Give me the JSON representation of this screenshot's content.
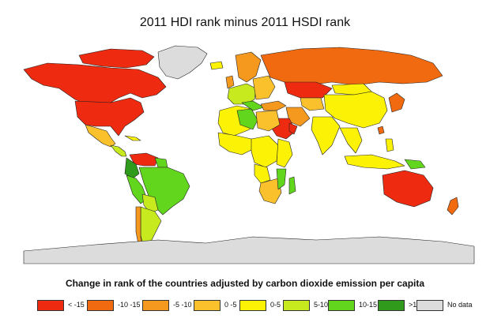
{
  "title": "2011 HDI rank minus 2011 HSDI rank",
  "subtitle": "Change in rank of the countries adjusted by carbon dioxide emission per capita",
  "colors": {
    "lt_-15": "#ee2a10",
    "-10_-15": "#f26a10",
    "-5_-10": "#f5981e",
    "0_-5": "#fbc12c",
    "0_5": "#fbf205",
    "5_10": "#c6ea1e",
    "10_15": "#62d61c",
    "gt_15": "#2f9a1c",
    "no_data": "#dcdcdc"
  },
  "legend": [
    {
      "label": "< -15",
      "color": "#ee2a10"
    },
    {
      "label": "-10  -15",
      "color": "#f26a10"
    },
    {
      "label": "-5 -10",
      "color": "#f5981e"
    },
    {
      "label": "0 -5",
      "color": "#fbc12c"
    },
    {
      "label": "0-5",
      "color": "#fbf205"
    },
    {
      "label": "5-10",
      "color": "#c6ea1e"
    },
    {
      "label": "10-15",
      "color": "#62d61c"
    },
    {
      ">15": "",
      "label": ">15",
      "color": "#2f9a1c"
    },
    {
      "label": "No data",
      "color": "#dcdcdc"
    }
  ]
}
